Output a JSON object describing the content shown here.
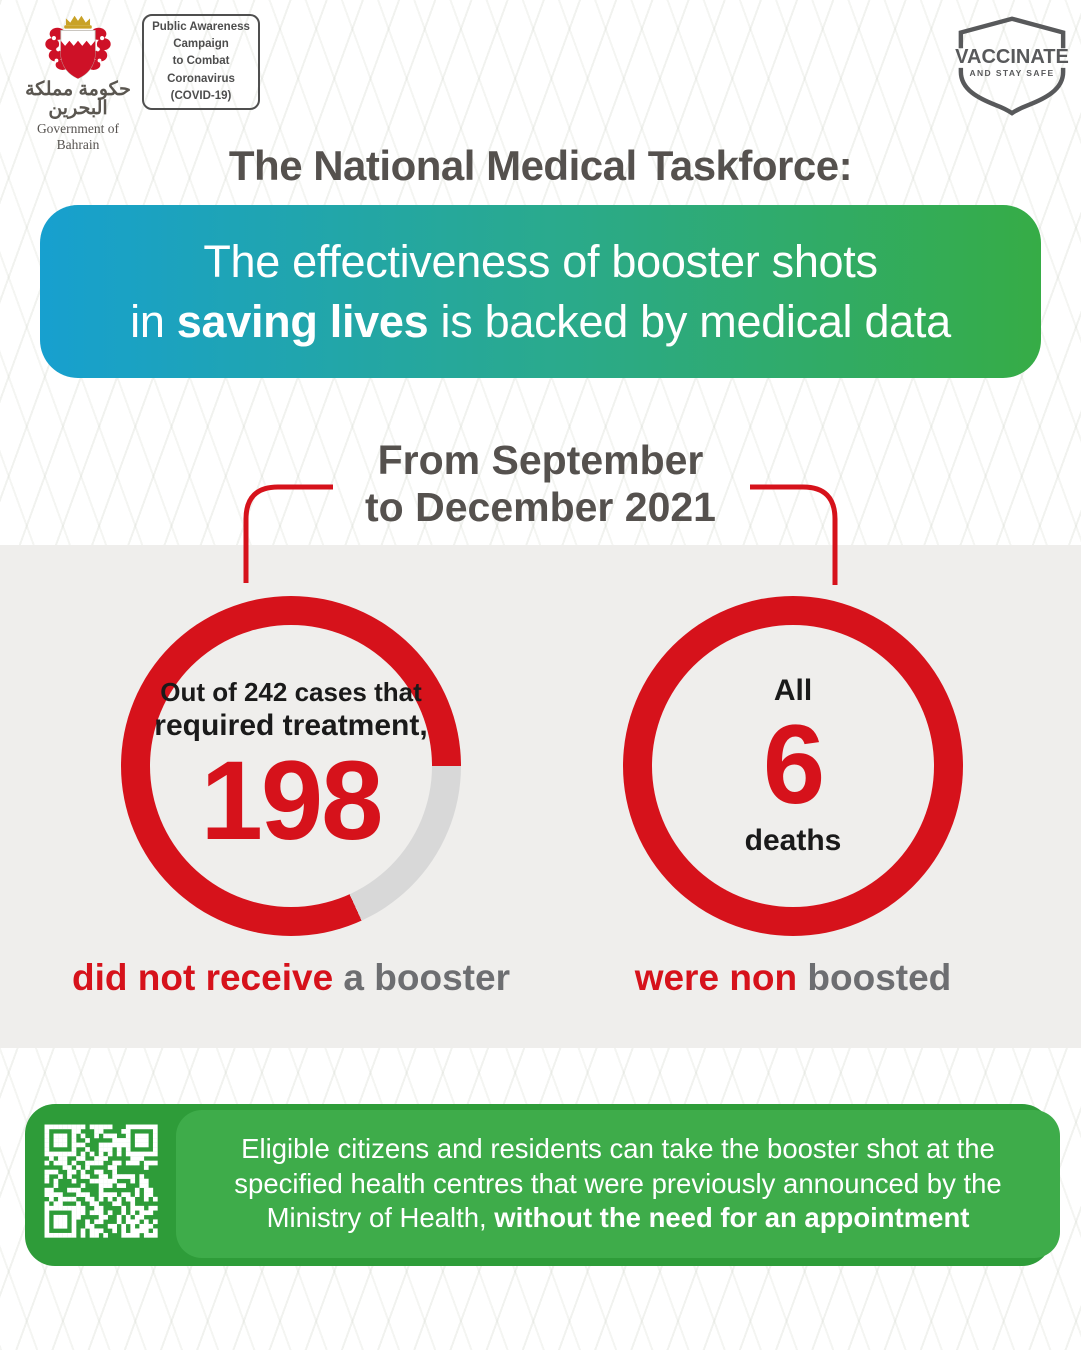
{
  "header": {
    "emblem": {
      "arabic_text": "حكومة مملكة البحرين",
      "caption": "Government of Bahrain"
    },
    "campaign_box": {
      "lines": [
        "Public Awareness",
        "Campaign",
        "to Combat",
        "Coronavirus",
        "(COVID-19)"
      ]
    },
    "vaccinate_badge": {
      "title": "VACCINATE",
      "subtitle": "AND STAY SAFE"
    }
  },
  "title": "The National Medical Taskforce:",
  "banner": {
    "line1": "The effectiveness of booster shots",
    "line2_prefix": "in ",
    "line2_bold": "saving lives",
    "line2_suffix": " is backed by medical data"
  },
  "period": {
    "line1": "From September",
    "line2": "to December 2021"
  },
  "chart_data": [
    {
      "type": "donut",
      "position": "left",
      "intro_line1": "Out of 242 cases that",
      "intro_line2": "required treatment,",
      "number": "198",
      "value": 198,
      "total": 242,
      "caption_red": "did not receive",
      "caption_gray": " a booster",
      "note": "red arc = 198 of 242 cases; remainder shown as light gray segment starting at 3 o'clock"
    },
    {
      "type": "donut",
      "position": "right",
      "label_top": "All",
      "number": "6",
      "value": 6,
      "total": 6,
      "label_bottom": "deaths",
      "caption_red": "were non",
      "caption_gray": " boosted",
      "note": "full red ring = all 6 deaths"
    }
  ],
  "footer": {
    "line1": "Eligible citizens and residents can take the booster shot at the",
    "line2": "specified health centres that were previously announced by the",
    "line3_prefix": "Ministry of Health, ",
    "line3_bold": "without the need for an appointment"
  },
  "colors": {
    "red": "#d6121b",
    "gray_segment": "#d8d8d8",
    "dark_text": "#55514e",
    "caption_gray": "#6d6e71",
    "band_bg": "#efeeec",
    "banner_gradient_start": "#17a0cf",
    "banner_gradient_end": "#36ac46",
    "footer_outer_green": "#2e9c39",
    "footer_inner_green": "#3eac4a",
    "crown_gold": "#c9a227"
  },
  "icons": {
    "emblem": "bahrain-coat-of-arms",
    "badge": "vaccinate-shield",
    "qr": "qr-code"
  }
}
